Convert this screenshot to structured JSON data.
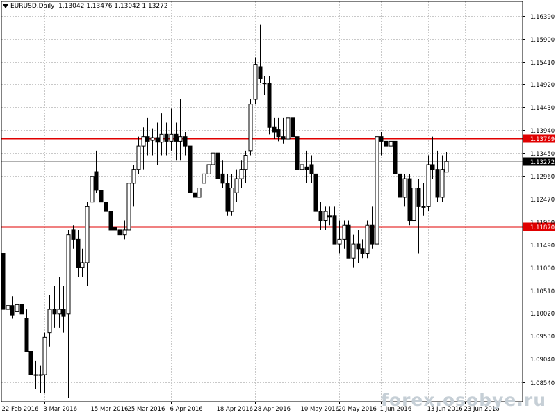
{
  "header": {
    "symbol": "EURUSD,Daily",
    "ohlc": "1.13042 1.13476 1.13042 1.13272"
  },
  "watermark": "forex.osobye.ru",
  "colors": {
    "background": "#ffffff",
    "grid": "#c8c8c8",
    "candle": "#000000",
    "level_line": "#e00000",
    "level_label_bg": "#e00000",
    "current_label_bg": "#000000"
  },
  "chart_data": {
    "type": "candlestick",
    "title": "",
    "xlabel": "",
    "ylabel": "",
    "ylim": [
      1.0812,
      1.167
    ],
    "grid": true,
    "y_ticks": [
      "1.16390",
      "1.15900",
      "1.15410",
      "1.14920",
      "1.14430",
      "1.13940",
      "1.13450",
      "1.12960",
      "1.12470",
      "1.11980",
      "1.11490",
      "1.11000",
      "1.10510",
      "1.10020",
      "1.09530",
      "1.09040",
      "1.08540"
    ],
    "x_labels": [
      {
        "index": 0,
        "label": "22 Feb 2016"
      },
      {
        "index": 9,
        "label": "3 Mar 2016"
      },
      {
        "index": 19,
        "label": "15 Mar 2016"
      },
      {
        "index": 27,
        "label": "25 Mar 2016"
      },
      {
        "index": 36,
        "label": "6 Apr 2016"
      },
      {
        "index": 46,
        "label": "18 Apr 2016"
      },
      {
        "index": 54,
        "label": "28 Apr 2016"
      },
      {
        "index": 64,
        "label": "10 May 2016"
      },
      {
        "index": 72,
        "label": "20 May 2016"
      },
      {
        "index": 81,
        "label": "1 Jun 2016"
      },
      {
        "index": 91,
        "label": "13 Jun 2016"
      },
      {
        "index": 99,
        "label": "23 Jun 2016"
      }
    ],
    "levels": [
      {
        "value": 1.13769,
        "label": "1.13769"
      },
      {
        "value": 1.1187,
        "label": "1.11870"
      }
    ],
    "current_price": {
      "value": 1.13272,
      "label": "1.13272"
    },
    "candles": [
      {
        "o": 1.113,
        "h": 1.114,
        "l": 1.1,
        "c": 1.101
      },
      {
        "o": 1.101,
        "h": 1.106,
        "l": 1.0985,
        "c": 1.1018
      },
      {
        "o": 1.1018,
        "h": 1.1038,
        "l": 1.099,
        "c": 1.0998
      },
      {
        "o": 1.1005,
        "h": 1.1035,
        "l": 1.0975,
        "c": 1.102
      },
      {
        "o": 1.102,
        "h": 1.105,
        "l": 1.096,
        "c": 1.1
      },
      {
        "o": 1.099,
        "h": 1.101,
        "l": 1.092,
        "c": 1.092
      },
      {
        "o": 1.092,
        "h": 1.096,
        "l": 1.084,
        "c": 1.087
      },
      {
        "o": 1.087,
        "h": 1.09,
        "l": 1.084,
        "c": 1.087
      },
      {
        "o": 1.087,
        "h": 1.089,
        "l": 1.083,
        "c": 1.087
      },
      {
        "o": 1.087,
        "h": 1.096,
        "l": 1.083,
        "c": 1.095
      },
      {
        "o": 1.096,
        "h": 1.104,
        "l": 1.093,
        "c": 1.101
      },
      {
        "o": 1.101,
        "h": 1.106,
        "l": 1.097,
        "c": 1.1
      },
      {
        "o": 1.1,
        "h": 1.108,
        "l": 1.097,
        "c": 1.101
      },
      {
        "o": 1.101,
        "h": 1.106,
        "l": 1.096,
        "c": 1.0995
      },
      {
        "o": 1.1,
        "h": 1.118,
        "l": 1.082,
        "c": 1.117
      },
      {
        "o": 1.118,
        "h": 1.119,
        "l": 1.114,
        "c": 1.116
      },
      {
        "o": 1.116,
        "h": 1.118,
        "l": 1.108,
        "c": 1.11
      },
      {
        "o": 1.11,
        "h": 1.114,
        "l": 1.108,
        "c": 1.111
      },
      {
        "o": 1.111,
        "h": 1.124,
        "l": 1.106,
        "c": 1.123
      },
      {
        "o": 1.124,
        "h": 1.135,
        "l": 1.123,
        "c": 1.1295
      },
      {
        "o": 1.1305,
        "h": 1.135,
        "l": 1.126,
        "c": 1.1265
      },
      {
        "o": 1.1265,
        "h": 1.129,
        "l": 1.123,
        "c": 1.124
      },
      {
        "o": 1.124,
        "h": 1.126,
        "l": 1.12,
        "c": 1.122
      },
      {
        "o": 1.122,
        "h": 1.123,
        "l": 1.117,
        "c": 1.118
      },
      {
        "o": 1.1185,
        "h": 1.12,
        "l": 1.115,
        "c": 1.118
      },
      {
        "o": 1.118,
        "h": 1.12,
        "l": 1.116,
        "c": 1.117
      },
      {
        "o": 1.117,
        "h": 1.12,
        "l": 1.116,
        "c": 1.118
      },
      {
        "o": 1.118,
        "h": 1.128,
        "l": 1.117,
        "c": 1.128
      },
      {
        "o": 1.128,
        "h": 1.132,
        "l": 1.123,
        "c": 1.131
      },
      {
        "o": 1.131,
        "h": 1.138,
        "l": 1.13,
        "c": 1.136
      },
      {
        "o": 1.136,
        "h": 1.14,
        "l": 1.131,
        "c": 1.138
      },
      {
        "o": 1.138,
        "h": 1.142,
        "l": 1.134,
        "c": 1.137
      },
      {
        "o": 1.1372,
        "h": 1.1398,
        "l": 1.134,
        "c": 1.1378
      },
      {
        "o": 1.1378,
        "h": 1.141,
        "l": 1.132,
        "c": 1.1368
      },
      {
        "o": 1.1368,
        "h": 1.143,
        "l": 1.134,
        "c": 1.1385
      },
      {
        "o": 1.1385,
        "h": 1.141,
        "l": 1.134,
        "c": 1.137
      },
      {
        "o": 1.137,
        "h": 1.144,
        "l": 1.135,
        "c": 1.1385
      },
      {
        "o": 1.1385,
        "h": 1.141,
        "l": 1.133,
        "c": 1.137
      },
      {
        "o": 1.137,
        "h": 1.146,
        "l": 1.133,
        "c": 1.138
      },
      {
        "o": 1.138,
        "h": 1.139,
        "l": 1.134,
        "c": 1.136
      },
      {
        "o": 1.136,
        "h": 1.137,
        "l": 1.125,
        "c": 1.126
      },
      {
        "o": 1.126,
        "h": 1.129,
        "l": 1.123,
        "c": 1.125
      },
      {
        "o": 1.125,
        "h": 1.13,
        "l": 1.124,
        "c": 1.127
      },
      {
        "o": 1.128,
        "h": 1.132,
        "l": 1.125,
        "c": 1.13
      },
      {
        "o": 1.13,
        "h": 1.134,
        "l": 1.128,
        "c": 1.132
      },
      {
        "o": 1.132,
        "h": 1.137,
        "l": 1.13,
        "c": 1.1345
      },
      {
        "o": 1.1345,
        "h": 1.137,
        "l": 1.128,
        "c": 1.129
      },
      {
        "o": 1.13,
        "h": 1.133,
        "l": 1.127,
        "c": 1.128
      },
      {
        "o": 1.128,
        "h": 1.13,
        "l": 1.121,
        "c": 1.122
      },
      {
        "o": 1.122,
        "h": 1.13,
        "l": 1.121,
        "c": 1.127
      },
      {
        "o": 1.126,
        "h": 1.131,
        "l": 1.124,
        "c": 1.129
      },
      {
        "o": 1.129,
        "h": 1.133,
        "l": 1.127,
        "c": 1.131
      },
      {
        "o": 1.131,
        "h": 1.135,
        "l": 1.128,
        "c": 1.134
      },
      {
        "o": 1.135,
        "h": 1.146,
        "l": 1.134,
        "c": 1.145
      },
      {
        "o": 1.146,
        "h": 1.155,
        "l": 1.145,
        "c": 1.1535
      },
      {
        "o": 1.153,
        "h": 1.162,
        "l": 1.1495,
        "c": 1.1505
      },
      {
        "o": 1.1495,
        "h": 1.151,
        "l": 1.147,
        "c": 1.1495
      },
      {
        "o": 1.1495,
        "h": 1.151,
        "l": 1.1385,
        "c": 1.14
      },
      {
        "o": 1.14,
        "h": 1.142,
        "l": 1.1375,
        "c": 1.139
      },
      {
        "o": 1.1395,
        "h": 1.142,
        "l": 1.137,
        "c": 1.138
      },
      {
        "o": 1.138,
        "h": 1.142,
        "l": 1.1365,
        "c": 1.1375
      },
      {
        "o": 1.1375,
        "h": 1.145,
        "l": 1.136,
        "c": 1.142
      },
      {
        "o": 1.142,
        "h": 1.143,
        "l": 1.1365,
        "c": 1.138
      },
      {
        "o": 1.138,
        "h": 1.139,
        "l": 1.128,
        "c": 1.131
      },
      {
        "o": 1.131,
        "h": 1.135,
        "l": 1.13,
        "c": 1.132
      },
      {
        "o": 1.1315,
        "h": 1.135,
        "l": 1.128,
        "c": 1.131
      },
      {
        "o": 1.132,
        "h": 1.134,
        "l": 1.128,
        "c": 1.13
      },
      {
        "o": 1.13,
        "h": 1.131,
        "l": 1.121,
        "c": 1.122
      },
      {
        "o": 1.122,
        "h": 1.124,
        "l": 1.118,
        "c": 1.12
      },
      {
        "o": 1.12,
        "h": 1.123,
        "l": 1.118,
        "c": 1.122
      },
      {
        "o": 1.121,
        "h": 1.123,
        "l": 1.119,
        "c": 1.121
      },
      {
        "o": 1.121,
        "h": 1.123,
        "l": 1.115,
        "c": 1.115
      },
      {
        "o": 1.115,
        "h": 1.12,
        "l": 1.113,
        "c": 1.116
      },
      {
        "o": 1.116,
        "h": 1.12,
        "l": 1.114,
        "c": 1.119
      },
      {
        "o": 1.119,
        "h": 1.12,
        "l": 1.112,
        "c": 1.112
      },
      {
        "o": 1.112,
        "h": 1.117,
        "l": 1.11,
        "c": 1.115
      },
      {
        "o": 1.115,
        "h": 1.118,
        "l": 1.111,
        "c": 1.114
      },
      {
        "o": 1.114,
        "h": 1.116,
        "l": 1.112,
        "c": 1.113
      },
      {
        "o": 1.113,
        "h": 1.12,
        "l": 1.112,
        "c": 1.119
      },
      {
        "o": 1.119,
        "h": 1.123,
        "l": 1.114,
        "c": 1.115
      },
      {
        "o": 1.115,
        "h": 1.139,
        "l": 1.114,
        "c": 1.138
      },
      {
        "o": 1.138,
        "h": 1.139,
        "l": 1.134,
        "c": 1.137
      },
      {
        "o": 1.137,
        "h": 1.1375,
        "l": 1.135,
        "c": 1.136
      },
      {
        "o": 1.136,
        "h": 1.139,
        "l": 1.134,
        "c": 1.137
      },
      {
        "o": 1.137,
        "h": 1.14,
        "l": 1.128,
        "c": 1.13
      },
      {
        "o": 1.13,
        "h": 1.132,
        "l": 1.124,
        "c": 1.125
      },
      {
        "o": 1.125,
        "h": 1.13,
        "l": 1.123,
        "c": 1.129
      },
      {
        "o": 1.129,
        "h": 1.13,
        "l": 1.119,
        "c": 1.12
      },
      {
        "o": 1.12,
        "h": 1.129,
        "l": 1.119,
        "c": 1.127
      },
      {
        "o": 1.127,
        "h": 1.129,
        "l": 1.113,
        "c": 1.123
      },
      {
        "o": 1.123,
        "h": 1.128,
        "l": 1.121,
        "c": 1.123
      },
      {
        "o": 1.123,
        "h": 1.134,
        "l": 1.122,
        "c": 1.132
      },
      {
        "o": 1.132,
        "h": 1.138,
        "l": 1.129,
        "c": 1.131
      },
      {
        "o": 1.131,
        "h": 1.135,
        "l": 1.124,
        "c": 1.125
      },
      {
        "o": 1.125,
        "h": 1.134,
        "l": 1.124,
        "c": 1.131
      },
      {
        "o": 1.1304,
        "h": 1.1348,
        "l": 1.1304,
        "c": 1.1327
      }
    ]
  }
}
